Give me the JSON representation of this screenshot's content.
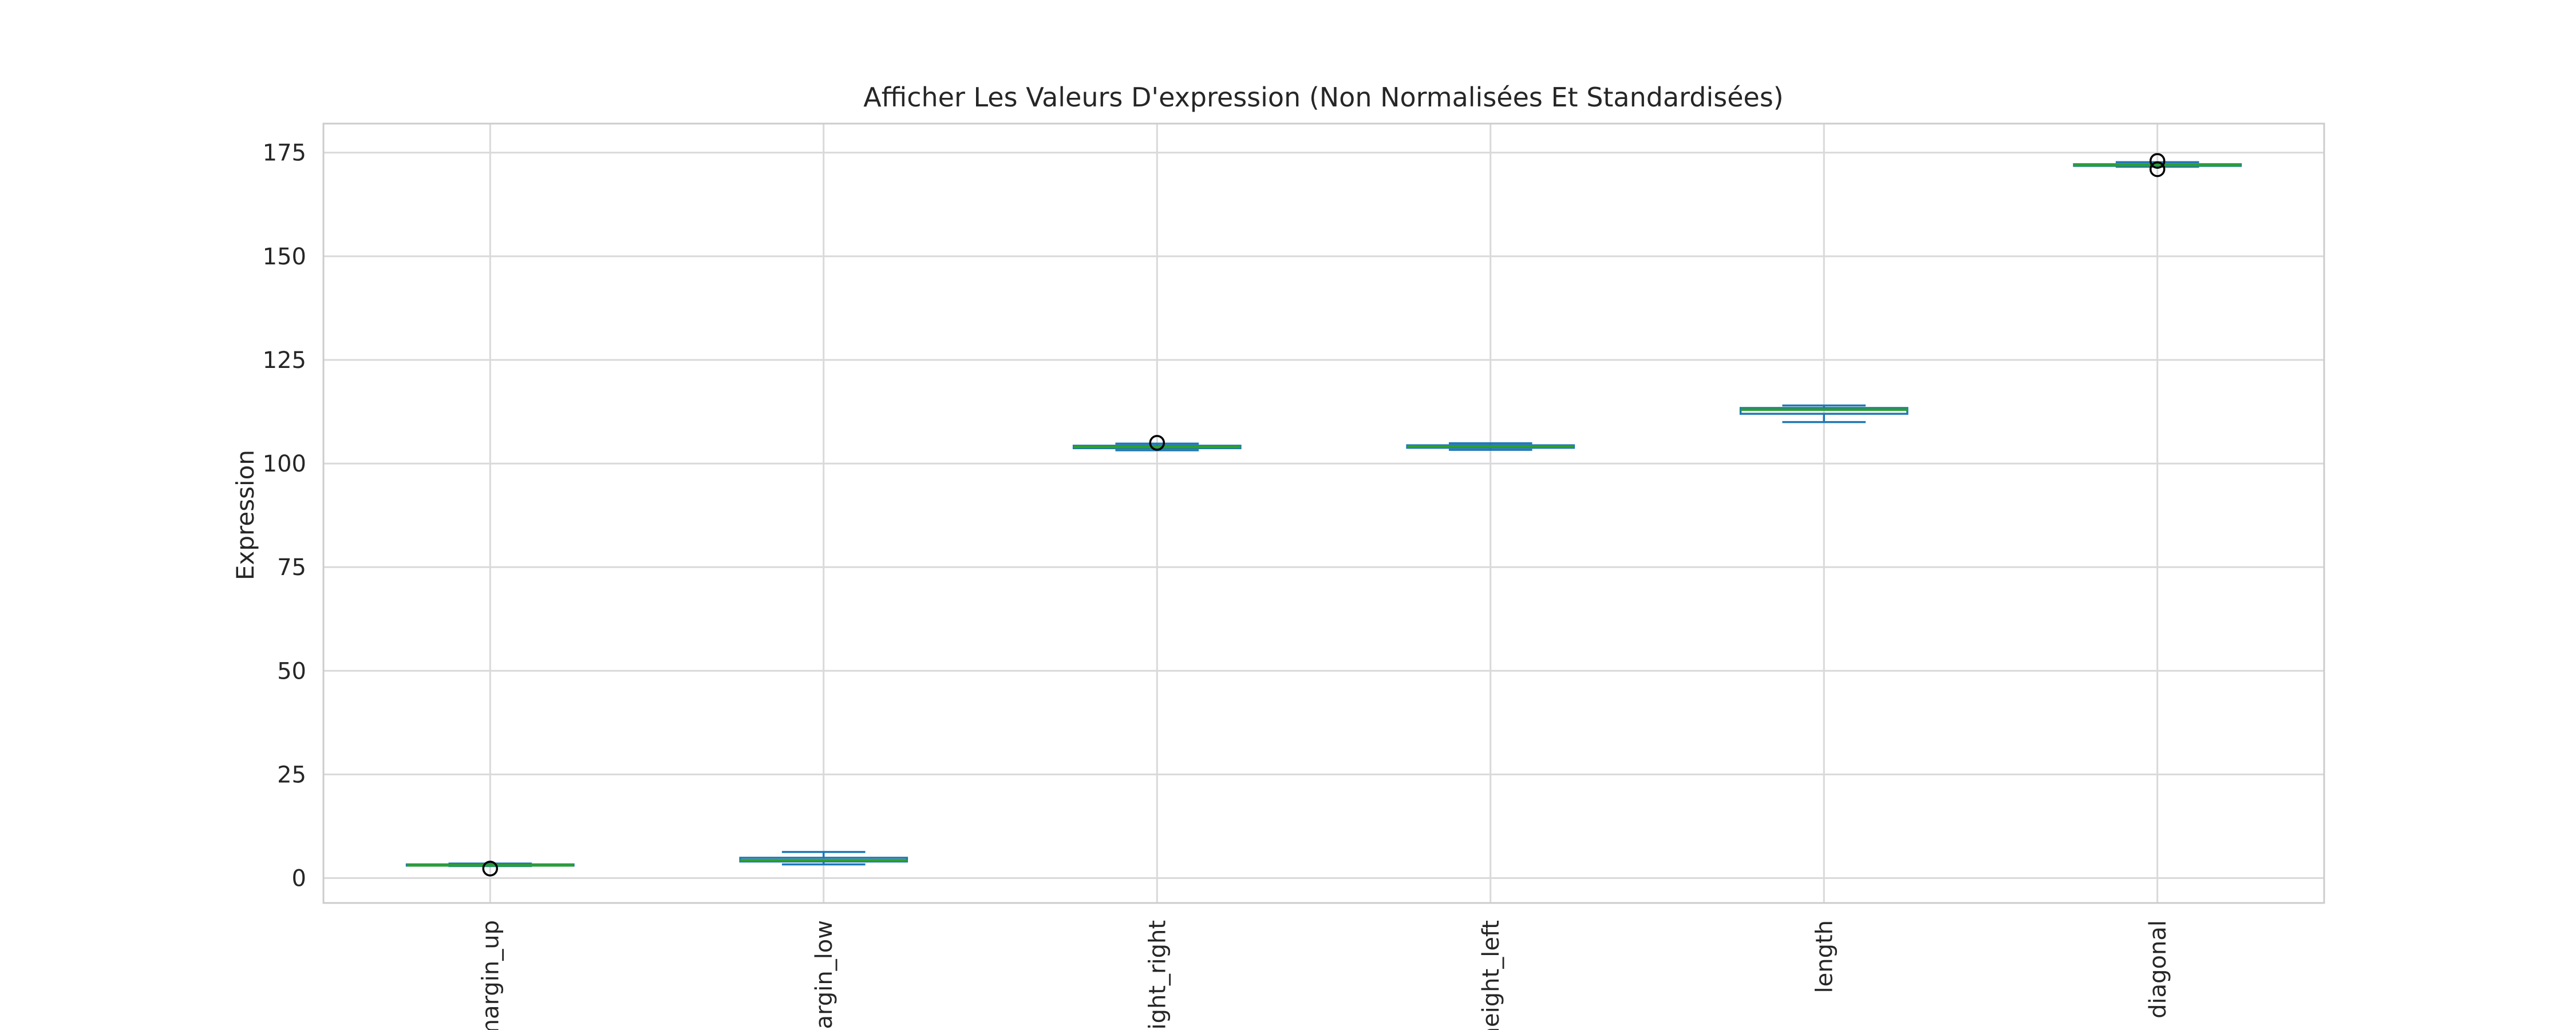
{
  "chart_data": {
    "type": "box",
    "title": "Afficher Les Valeurs D'expression (Non Normalisées Et Standardisées)",
    "xlabel": "",
    "ylabel": "Expression",
    "ylim": [
      -6,
      182
    ],
    "yticks": [
      0,
      25,
      50,
      75,
      100,
      125,
      150,
      175
    ],
    "categories": [
      "margin_up",
      "margin_low",
      "height_right",
      "height_left",
      "length",
      "diagonal"
    ],
    "grid": true,
    "colors": {
      "box": "#1f77b4",
      "median": "#2ca02c",
      "flier": "#000000",
      "grid": "#d9d9d9",
      "spine": "#cccccc"
    },
    "boxes": [
      {
        "name": "margin_up",
        "whislo": 2.9,
        "q1": 3.0,
        "med": 3.1,
        "q3": 3.3,
        "whishi": 3.5,
        "fliers": [
          2.3
        ]
      },
      {
        "name": "margin_low",
        "whislo": 3.3,
        "q1": 4.0,
        "med": 4.3,
        "q3": 4.9,
        "whishi": 6.3,
        "fliers": []
      },
      {
        "name": "height_right",
        "whislo": 103.2,
        "q1": 103.7,
        "med": 104.0,
        "q3": 104.3,
        "whishi": 104.8,
        "fliers": [
          105.0
        ]
      },
      {
        "name": "height_left",
        "whislo": 103.3,
        "q1": 103.8,
        "med": 104.1,
        "q3": 104.4,
        "whishi": 104.9,
        "fliers": []
      },
      {
        "name": "length",
        "whislo": 110.0,
        "q1": 112.0,
        "med": 113.0,
        "q3": 113.4,
        "whishi": 114.0,
        "fliers": []
      },
      {
        "name": "diagonal",
        "whislo": 171.6,
        "q1": 171.8,
        "med": 172.0,
        "q3": 172.2,
        "whishi": 172.7,
        "fliers": [
          171.0,
          173.0
        ]
      }
    ]
  }
}
